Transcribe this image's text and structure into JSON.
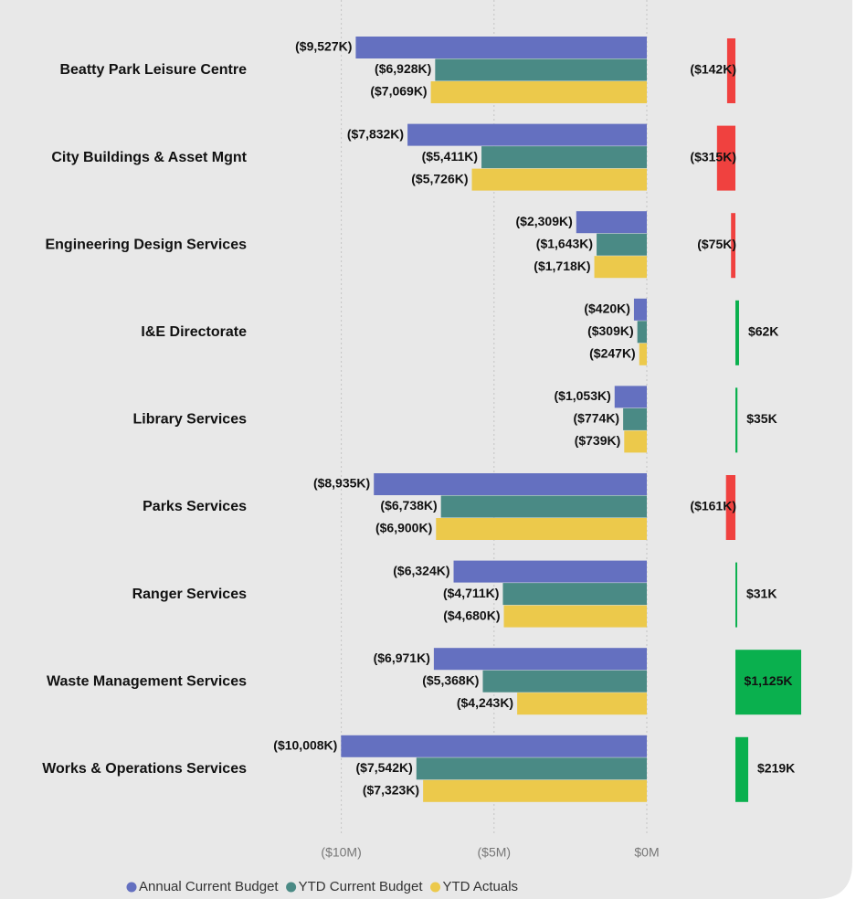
{
  "chart_data": [
    {
      "type": "grouped-hbar",
      "categories": [
        "Beatty Park Leisure Centre",
        "City Buildings & Asset Mgnt",
        "Engineering Design Services",
        "I&E Directorate",
        "Library Services",
        "Parks Services",
        "Ranger Services",
        "Waste Management Services",
        "Works & Operations Services"
      ],
      "series": [
        {
          "name": "Annual Current Budget",
          "color": "#6470c0",
          "values": [
            -9.527,
            -7.832,
            -2.309,
            -0.42,
            -1.053,
            -8.935,
            -6.324,
            -6.971,
            -10.008
          ],
          "value_labels": [
            "($9,527K)",
            "($7,832K)",
            "($2,309K)",
            "($420K)",
            "($1,053K)",
            "($8,935K)",
            "($6,324K)",
            "($6,971K)",
            "($10,008K)"
          ]
        },
        {
          "name": "YTD Current Budget",
          "color": "#4a8a85",
          "values": [
            -6.928,
            -5.411,
            -1.643,
            -0.309,
            -0.774,
            -6.738,
            -4.711,
            -5.368,
            -7.542
          ],
          "value_labels": [
            "($6,928K)",
            "($5,411K)",
            "($1,643K)",
            "($309K)",
            "($774K)",
            "($6,738K)",
            "($4,711K)",
            "($5,368K)",
            "($7,542K)"
          ]
        },
        {
          "name": "YTD Actuals",
          "color": "#ecc94b",
          "values": [
            -7.069,
            -5.726,
            -1.718,
            -0.247,
            -0.739,
            -6.9,
            -4.68,
            -4.243,
            -7.323
          ],
          "value_labels": [
            "($7,069K)",
            "($5,726K)",
            "($1,718K)",
            "($247K)",
            "($739K)",
            "($6,900K)",
            "($4,680K)",
            "($4,243K)",
            "($7,323K)"
          ]
        }
      ],
      "xlim": [
        -12.5,
        0
      ],
      "xticks": [
        {
          "value": -10,
          "label": "($10M)"
        },
        {
          "value": -5,
          "label": "($5M)"
        },
        {
          "value": 0,
          "label": "$0M"
        }
      ],
      "grid": true
    },
    {
      "type": "variance-hbar",
      "values": [
        -142,
        -315,
        -75,
        62,
        35,
        -161,
        31,
        1125,
        219
      ],
      "value_labels": [
        "($142K)",
        "($315K)",
        "($75K)",
        "$62K",
        "$35K",
        "($161K)",
        "$31K",
        "$1,125K",
        "$219K"
      ],
      "xlim": [
        -1500,
        2000
      ],
      "positive_color": "#0ab04e",
      "negative_color": "#f0413f"
    }
  ]
}
